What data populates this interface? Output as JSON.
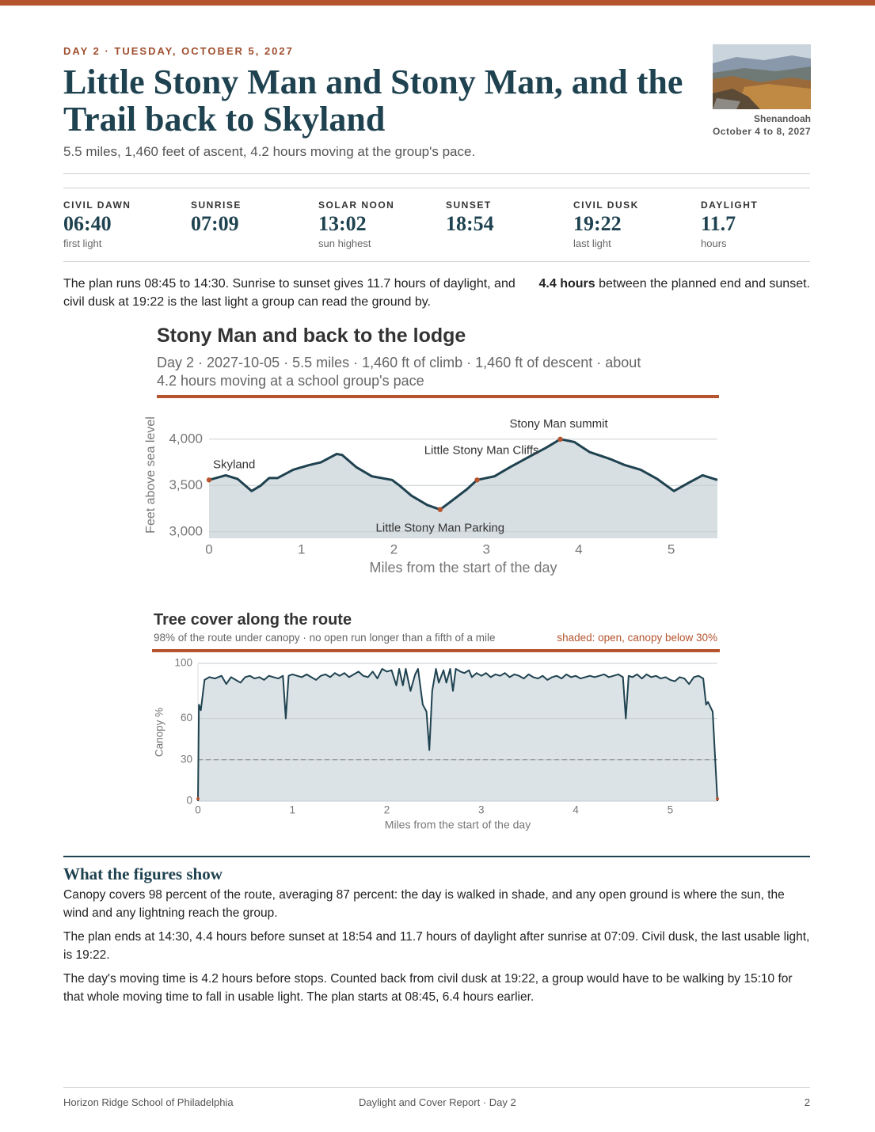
{
  "header": {
    "eyebrow": "DAY 2 · TUESDAY, OCTOBER 5, 2027",
    "title": "Little Stony Man and Stony Man, and the Trail back to Skyland",
    "subtitle": "5.5 miles, 1,460 feet of ascent, 4.2 hours moving at the group's pace.",
    "place": "Shenandoah",
    "dates": "October 4 to 8, 2027"
  },
  "stats": [
    {
      "label": "CIVIL DAWN",
      "value": "06:40",
      "note": "first light"
    },
    {
      "label": "SUNRISE",
      "value": "07:09"
    },
    {
      "label": "SOLAR NOON",
      "value": "13:02",
      "note": "sun highest"
    },
    {
      "label": "SUNSET",
      "value": "18:54"
    },
    {
      "label": "CIVIL DUSK",
      "value": "19:22",
      "note": "last light"
    },
    {
      "label": "DAYLIGHT",
      "value": "11.7",
      "note": "hours"
    }
  ],
  "summary": {
    "text": "The plan runs 08:45 to 14:30. Sunrise to sunset gives 11.7 hours of daylight, and civil dusk at 19:22 is the last light a group can read the ground by.",
    "callout_strong": "4.4 hours",
    "callout_rest": "between the planned end and sunset."
  },
  "chart_data": [
    {
      "type": "area",
      "title": "Stony Man and back to the lodge",
      "subtitle": "Day 2 · 2027-10-05 · 5.5 miles · 1,460 ft of climb · 1,460 ft of descent · about 4.2 hours moving at a school group's pace",
      "x_label": "Miles from the start of the day",
      "y_label": "Feet above sea level",
      "x": [
        0,
        0.18,
        0.31,
        0.46,
        0.56,
        0.65,
        0.74,
        0.91,
        1.08,
        1.21,
        1.38,
        1.44,
        1.59,
        1.76,
        1.98,
        2.06,
        2.19,
        2.36,
        2.5,
        2.62,
        2.79,
        2.9,
        3.09,
        3.26,
        3.48,
        3.65,
        3.8,
        3.95,
        4.12,
        4.33,
        4.5,
        4.67,
        4.85,
        5.03,
        5.19,
        5.34,
        5.5
      ],
      "values": [
        3560,
        3610,
        3570,
        3440,
        3500,
        3580,
        3580,
        3670,
        3720,
        3750,
        3840,
        3830,
        3700,
        3600,
        3560,
        3500,
        3390,
        3290,
        3240,
        3330,
        3460,
        3560,
        3600,
        3700,
        3820,
        3910,
        4000,
        3970,
        3860,
        3790,
        3720,
        3670,
        3570,
        3440,
        3530,
        3610,
        3560
      ],
      "color": "#1f4250",
      "fill": "#d7dfe2",
      "annotations": [
        {
          "label": "Skyland",
          "x": 0,
          "y": 3560
        },
        {
          "label": "Little Stony Man Parking",
          "x": 2.5,
          "y": 3240
        },
        {
          "label": "Little Stony Man Cliffs",
          "x": 2.9,
          "y": 3560
        },
        {
          "label": "Stony Man summit",
          "x": 3.8,
          "y": 4000
        }
      ],
      "xlim": [
        0,
        5.5
      ],
      "xticks": [
        0,
        1,
        2,
        3,
        4,
        5
      ],
      "ylim": [
        2930,
        4100
      ],
      "yticks": [
        {
          "value": 3000,
          "label": "3,000"
        },
        {
          "value": 3500,
          "label": "3,500"
        },
        {
          "value": 4000,
          "label": "4,000"
        }
      ],
      "grid": true
    },
    {
      "type": "area",
      "title": "Tree cover along the route",
      "subtitle": "98% of the route under canopy · no open run longer than a fifth of a mile",
      "legend_note": "shaded: open, canopy below 30%",
      "x_label": "Miles from the start of the day",
      "y_label": "Canopy %",
      "threshold": 30,
      "x": [
        0,
        0.01,
        0.03,
        0.07,
        0.12,
        0.18,
        0.25,
        0.3,
        0.35,
        0.4,
        0.45,
        0.5,
        0.55,
        0.6,
        0.65,
        0.7,
        0.75,
        0.8,
        0.85,
        0.9,
        0.93,
        0.96,
        1.0,
        1.05,
        1.1,
        1.15,
        1.2,
        1.25,
        1.3,
        1.35,
        1.4,
        1.45,
        1.5,
        1.55,
        1.6,
        1.65,
        1.7,
        1.75,
        1.8,
        1.85,
        1.9,
        1.95,
        2.0,
        2.05,
        2.1,
        2.13,
        2.17,
        2.2,
        2.25,
        2.3,
        2.33,
        2.38,
        2.42,
        2.45,
        2.48,
        2.52,
        2.55,
        2.6,
        2.63,
        2.67,
        2.7,
        2.73,
        2.78,
        2.82,
        2.87,
        2.9,
        2.95,
        3.0,
        3.05,
        3.1,
        3.15,
        3.2,
        3.25,
        3.3,
        3.35,
        3.4,
        3.45,
        3.5,
        3.55,
        3.6,
        3.65,
        3.7,
        3.75,
        3.8,
        3.85,
        3.9,
        3.95,
        4.0,
        4.05,
        4.1,
        4.15,
        4.2,
        4.25,
        4.3,
        4.35,
        4.4,
        4.45,
        4.5,
        4.53,
        4.56,
        4.6,
        4.65,
        4.7,
        4.75,
        4.8,
        4.85,
        4.9,
        4.95,
        5.0,
        5.05,
        5.1,
        5.15,
        5.2,
        5.25,
        5.3,
        5.35,
        5.38,
        5.4,
        5.45,
        5.5
      ],
      "values": [
        0,
        70,
        66,
        88,
        90,
        89,
        91,
        85,
        90,
        88,
        86,
        90,
        91,
        89,
        90,
        88,
        91,
        90,
        89,
        91,
        60,
        91,
        92,
        91,
        90,
        92,
        90,
        88,
        91,
        92,
        90,
        93,
        91,
        93,
        90,
        92,
        94,
        91,
        90,
        94,
        89,
        96,
        94,
        95,
        84,
        96,
        84,
        96,
        80,
        92,
        96,
        70,
        65,
        37,
        80,
        96,
        86,
        95,
        86,
        96,
        80,
        96,
        94,
        93,
        95,
        90,
        93,
        91,
        93,
        90,
        92,
        91,
        93,
        90,
        92,
        91,
        89,
        92,
        90,
        89,
        91,
        88,
        90,
        91,
        89,
        92,
        90,
        91,
        89,
        90,
        91,
        90,
        91,
        92,
        90,
        91,
        92,
        90,
        60,
        91,
        90,
        92,
        89,
        92,
        90,
        91,
        89,
        90,
        88,
        87,
        90,
        89,
        85,
        90,
        91,
        89,
        70,
        72,
        65,
        0
      ],
      "color": "#1f4250",
      "fill": "#dbe3e6",
      "open_color": "#b5542f",
      "xlim": [
        0,
        5.5
      ],
      "xticks": [
        0,
        1,
        2,
        3,
        4,
        5
      ],
      "ylim": [
        0,
        100
      ],
      "yticks": [
        0,
        30,
        60,
        100
      ],
      "grid": true
    }
  ],
  "notes": {
    "heading": "What the figures show",
    "paragraphs": [
      "Canopy covers 98 percent of the route, averaging 87 percent: the day is walked in shade, and any open ground is where the sun, the wind and any lightning reach the group.",
      "The plan ends at 14:30, 4.4 hours before sunset at 18:54 and 11.7 hours of daylight after sunrise at 07:09. Civil dusk, the last usable light, is 19:22.",
      "The day's moving time is 4.2 hours before stops. Counted back from civil dusk at 19:22, a group would have to be walking by 15:10 for that whole moving time to fall in usable light. The plan starts at 08:45, 6.4 hours earlier."
    ]
  },
  "footer": {
    "left": "Horizon Ridge School of Philadelphia",
    "center": "Daylight and Cover Report · Day 2",
    "page": "2"
  }
}
